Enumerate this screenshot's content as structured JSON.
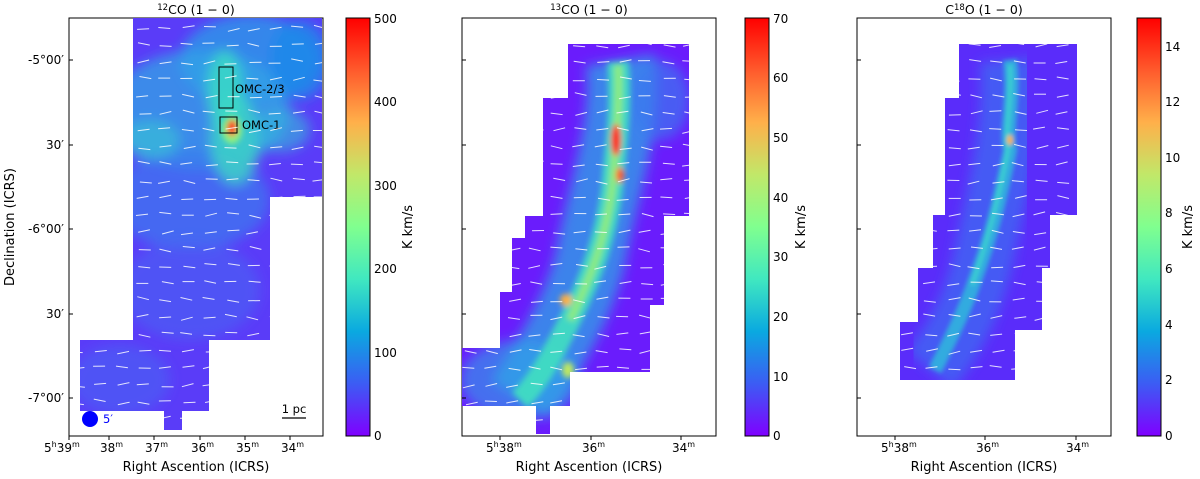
{
  "panels": [
    {
      "id": "co12",
      "title_pre": "",
      "title_sup": "12",
      "title_main": "CO (1 − 0)",
      "colorbar_label": "K km/s",
      "colorbar_ticks": [
        "0",
        "100",
        "200",
        "300",
        "400",
        "500"
      ],
      "colorbar_range": [
        0,
        500
      ],
      "x_ticks": [
        "5h39m",
        "38m",
        "37m",
        "36m",
        "35m",
        "34m"
      ],
      "y_ticks": [
        "-5°00′",
        "30′",
        "-6°00′",
        "30′",
        "-7°00′"
      ],
      "xlabel": "Right Ascention (ICRS)",
      "ylabel": "Declination (ICRS)",
      "regions": [
        "OMC-2/3",
        "OMC-1"
      ],
      "beam_label": "5′",
      "scalebar_label": "1 pc"
    },
    {
      "id": "co13",
      "title_pre": "",
      "title_sup": "13",
      "title_main": "CO (1 − 0)",
      "colorbar_label": "K km/s",
      "colorbar_ticks": [
        "0",
        "10",
        "20",
        "30",
        "40",
        "50",
        "60",
        "70"
      ],
      "colorbar_range": [
        0,
        70
      ],
      "x_ticks": [
        "5h38m",
        "36m",
        "34m"
      ],
      "xlabel": "Right Ascention (ICRS)"
    },
    {
      "id": "c18o",
      "title_pre": "C",
      "title_sup": "18",
      "title_main": "O (1 − 0)",
      "colorbar_label": "K km/s",
      "colorbar_ticks": [
        "0",
        "2",
        "4",
        "6",
        "8",
        "10",
        "12",
        "14"
      ],
      "colorbar_range": [
        0,
        15
      ],
      "x_ticks": [
        "5h38m",
        "36m",
        "34m"
      ],
      "xlabel": "Right Ascention (ICRS)"
    }
  ],
  "colors": {
    "colormap": [
      "#7f00ff",
      "#3c5cf4",
      "#0aa9e0",
      "#40e8c0",
      "#80ff8f",
      "#c1e869",
      "#ffb04a",
      "#ff5a2c",
      "#ff0000"
    ],
    "beam": "#0000ff"
  }
}
